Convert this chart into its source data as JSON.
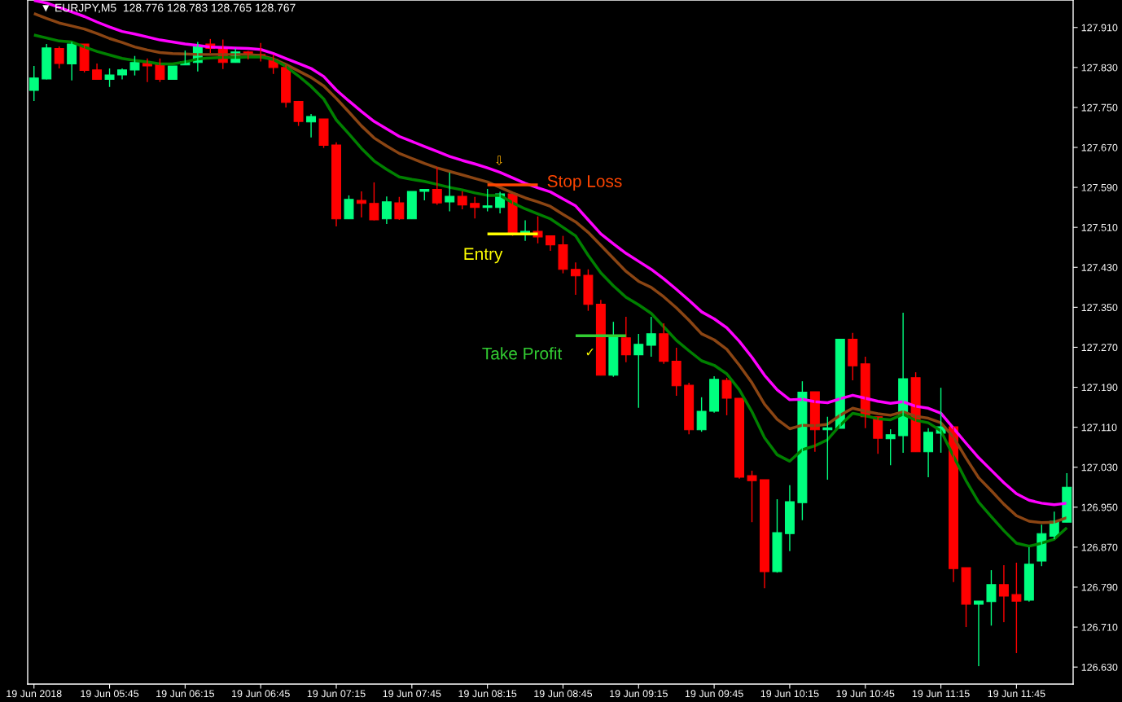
{
  "chart_data": {
    "type": "candlestick",
    "annotations": [
      "▼ EURJPY,M5  128.776 128.783 128.765 128.767",
      "⇩",
      "✓"
    ],
    "categories": [
      "19 Jun 2018",
      null,
      null,
      null,
      null,
      null,
      "19 Jun 05:45",
      null,
      null,
      null,
      null,
      null,
      "19 Jun 06:15",
      null,
      null,
      null,
      null,
      null,
      "19 Jun 06:45",
      null,
      null,
      null,
      null,
      null,
      "19 Jun 07:15",
      null,
      null,
      null,
      null,
      null,
      "19 Jun 07:45",
      null,
      null,
      null,
      null,
      null,
      "19 Jun 08:15",
      null,
      null,
      null,
      null,
      null,
      "19 Jun 08:45",
      null,
      null,
      null,
      null,
      null,
      "19 Jun 09:15",
      null,
      null,
      null,
      null,
      null,
      "19 Jun 09:45",
      null,
      null,
      null,
      null,
      null,
      "19 Jun 10:15",
      null,
      null,
      null,
      null,
      null,
      "19 Jun 10:45",
      null,
      null,
      null,
      null,
      null,
      "19 Jun 11:15",
      null,
      null,
      null,
      null,
      null,
      "19 Jun 11:45",
      null,
      null,
      null,
      null
    ],
    "ohlc": [
      [
        127.784,
        127.833,
        127.763,
        127.809
      ],
      [
        127.807,
        127.877,
        127.806,
        127.869
      ],
      [
        127.868,
        127.872,
        127.828,
        127.838
      ],
      [
        127.837,
        127.881,
        127.804,
        127.877
      ],
      [
        127.877,
        127.877,
        127.82,
        127.824
      ],
      [
        127.825,
        127.838,
        127.806,
        127.806
      ],
      [
        127.806,
        127.828,
        127.791,
        127.815
      ],
      [
        127.815,
        127.828,
        127.806,
        127.825
      ],
      [
        127.825,
        127.853,
        127.814,
        127.84
      ],
      [
        127.838,
        127.848,
        127.801,
        127.833
      ],
      [
        127.837,
        127.848,
        127.801,
        127.806
      ],
      [
        127.806,
        127.833,
        127.806,
        127.833
      ],
      [
        127.835,
        127.864,
        127.835,
        127.842
      ],
      [
        127.84,
        127.881,
        127.822,
        127.872
      ],
      [
        127.877,
        127.887,
        127.859,
        127.868
      ],
      [
        127.869,
        127.886,
        127.827,
        127.84
      ],
      [
        127.84,
        127.868,
        127.84,
        127.861
      ],
      [
        127.861,
        127.863,
        127.846,
        127.855
      ],
      [
        127.856,
        127.879,
        127.842,
        127.855
      ],
      [
        127.846,
        127.856,
        127.817,
        127.83
      ],
      [
        127.83,
        127.835,
        127.75,
        127.76
      ],
      [
        127.762,
        127.763,
        127.713,
        127.722
      ],
      [
        127.721,
        127.737,
        127.69,
        127.732
      ],
      [
        127.727,
        127.727,
        127.669,
        127.674
      ],
      [
        127.675,
        127.68,
        127.512,
        127.527
      ],
      [
        127.527,
        127.574,
        127.527,
        127.566
      ],
      [
        127.564,
        127.582,
        127.53,
        127.558
      ],
      [
        127.558,
        127.6,
        127.524,
        127.525
      ],
      [
        127.527,
        127.572,
        127.517,
        127.561
      ],
      [
        127.559,
        127.571,
        127.525,
        127.527
      ],
      [
        127.527,
        127.582,
        127.527,
        127.582
      ],
      [
        127.582,
        127.587,
        127.564,
        127.586
      ],
      [
        127.586,
        127.63,
        127.555,
        127.559
      ],
      [
        127.561,
        127.62,
        127.542,
        127.572
      ],
      [
        127.572,
        127.582,
        127.546,
        127.555
      ],
      [
        127.558,
        127.571,
        127.528,
        127.55
      ],
      [
        127.55,
        127.587,
        127.542,
        127.553
      ],
      [
        127.55,
        127.581,
        127.538,
        127.577
      ],
      [
        127.577,
        127.577,
        127.493,
        127.499
      ],
      [
        127.496,
        127.524,
        127.483,
        127.502
      ],
      [
        127.502,
        127.532,
        127.478,
        127.491
      ],
      [
        127.493,
        127.494,
        127.463,
        127.475
      ],
      [
        127.475,
        127.493,
        127.418,
        127.426
      ],
      [
        127.426,
        127.44,
        127.375,
        127.413
      ],
      [
        127.414,
        127.426,
        127.343,
        127.356
      ],
      [
        127.356,
        127.365,
        127.214,
        127.214
      ],
      [
        127.214,
        127.321,
        127.211,
        127.292
      ],
      [
        127.289,
        127.331,
        127.24,
        127.255
      ],
      [
        127.255,
        127.297,
        127.149,
        127.276
      ],
      [
        127.274,
        127.331,
        127.251,
        127.297
      ],
      [
        127.297,
        127.318,
        127.237,
        127.242
      ],
      [
        127.242,
        127.269,
        127.173,
        127.193
      ],
      [
        127.194,
        127.199,
        127.096,
        127.105
      ],
      [
        127.105,
        127.17,
        127.101,
        127.142
      ],
      [
        127.142,
        127.212,
        127.139,
        127.206
      ],
      [
        127.204,
        127.209,
        127.134,
        127.168
      ],
      [
        127.168,
        127.168,
        127.007,
        127.01
      ],
      [
        127.013,
        127.023,
        126.92,
        127.003
      ],
      [
        127.005,
        127.005,
        126.788,
        126.821
      ],
      [
        126.821,
        126.966,
        126.819,
        126.899
      ],
      [
        126.897,
        126.994,
        126.862,
        126.961
      ],
      [
        126.959,
        127.202,
        126.924,
        127.18
      ],
      [
        127.181,
        127.181,
        127.061,
        127.105
      ],
      [
        127.105,
        127.131,
        127.005,
        127.109
      ],
      [
        127.108,
        127.287,
        127.108,
        127.286
      ],
      [
        127.286,
        127.299,
        127.204,
        127.233
      ],
      [
        127.237,
        127.251,
        127.108,
        127.131
      ],
      [
        127.131,
        127.131,
        127.057,
        127.088
      ],
      [
        127.087,
        127.106,
        127.034,
        127.095
      ],
      [
        127.093,
        127.339,
        127.059,
        127.207
      ],
      [
        127.209,
        127.22,
        127.061,
        127.061
      ],
      [
        127.061,
        127.108,
        127.01,
        127.1
      ],
      [
        127.098,
        127.189,
        127.059,
        127.111
      ],
      [
        127.111,
        127.111,
        126.8,
        126.827
      ],
      [
        126.829,
        126.829,
        126.71,
        126.756
      ],
      [
        126.756,
        126.762,
        126.632,
        126.762
      ],
      [
        126.761,
        126.824,
        126.713,
        126.795
      ],
      [
        126.795,
        126.834,
        126.72,
        126.772
      ],
      [
        126.775,
        126.839,
        126.658,
        126.762
      ],
      [
        126.764,
        126.87,
        126.761,
        126.836
      ],
      [
        126.842,
        126.915,
        126.832,
        126.897
      ],
      [
        126.892,
        126.941,
        126.886,
        126.922
      ],
      [
        126.92,
        127.018,
        126.92,
        126.99
      ]
    ],
    "colors": [
      "#00ff7f",
      "#00ff7f",
      "#ff0000",
      "#00ff7f",
      "#ff0000",
      "#ff0000",
      "#00ff7f",
      "#00ff7f",
      "#00ff7f",
      "#ff0000",
      "#ff0000",
      "#00ff7f",
      "#00ff7f",
      "#00ff7f",
      "#ff0000",
      "#ff0000",
      "#00ff7f",
      "#ff0000",
      "#ff0000",
      "#ff0000",
      "#ff0000",
      "#ff0000",
      "#00ff7f",
      "#ff0000",
      "#ff0000",
      "#00ff7f",
      "#ff0000",
      "#ff0000",
      "#00ff7f",
      "#ff0000",
      "#00ff7f",
      "#00ff7f",
      "#ff0000",
      "#00ff7f",
      "#ff0000",
      "#ff0000",
      "#00ff7f",
      "#00ff7f",
      "#ff0000",
      "#00ff7f",
      "#ff0000",
      "#ff0000",
      "#ff0000",
      "#ff0000",
      "#ff0000",
      "#ff0000",
      "#00ff7f",
      "#ff0000",
      "#00ff7f",
      "#00ff7f",
      "#ff0000",
      "#ff0000",
      "#ff0000",
      "#00ff7f",
      "#00ff7f",
      "#ff0000",
      "#ff0000",
      "#ff0000",
      "#ff0000",
      "#00ff7f",
      "#00ff7f",
      "#00ff7f",
      "#ff0000",
      "#00ff7f",
      "#00ff7f",
      "#ff0000",
      "#ff0000",
      "#ff0000",
      "#00ff7f",
      "#00ff7f",
      "#ff0000",
      "#00ff7f",
      "#00ff7f",
      "#ff0000",
      "#ff0000",
      "#00ff7f",
      "#00ff7f",
      "#ff0000",
      "#ff0000",
      "#00ff7f",
      "#00ff7f",
      "#00ff7f",
      "#00ff7f"
    ],
    "series": [
      {
        "type": "line",
        "color": "#ff00ff",
        "values": [
          127.964,
          127.959,
          127.95,
          127.941,
          127.932,
          127.921,
          127.911,
          127.902,
          127.897,
          127.891,
          127.885,
          127.881,
          127.877,
          127.874,
          127.871,
          127.87,
          127.869,
          127.868,
          127.866,
          127.858,
          127.848,
          127.838,
          127.828,
          127.812,
          127.785,
          127.763,
          127.742,
          127.722,
          127.707,
          127.692,
          127.682,
          127.672,
          127.662,
          127.652,
          127.644,
          127.637,
          127.629,
          127.62,
          127.609,
          127.598,
          127.589,
          127.581,
          127.567,
          127.553,
          127.525,
          127.497,
          127.477,
          127.458,
          127.442,
          127.426,
          127.407,
          127.386,
          127.364,
          127.341,
          127.327,
          127.309,
          127.282,
          127.25,
          127.214,
          127.185,
          127.165,
          127.166,
          127.161,
          127.159,
          127.167,
          127.174,
          127.168,
          127.162,
          127.158,
          127.161,
          127.152,
          127.148,
          127.138,
          127.108,
          127.078,
          127.049,
          127.024,
          126.999,
          126.977,
          126.964,
          126.958,
          126.955,
          126.958
        ]
      },
      {
        "type": "line",
        "color": "#8b4513",
        "values": [
          127.938,
          127.928,
          127.919,
          127.913,
          127.907,
          127.898,
          127.888,
          127.88,
          127.871,
          127.865,
          127.86,
          127.858,
          127.857,
          127.856,
          127.856,
          127.856,
          127.856,
          127.856,
          127.854,
          127.847,
          127.836,
          127.823,
          127.81,
          127.793,
          127.768,
          127.741,
          127.713,
          127.689,
          127.673,
          127.658,
          127.648,
          127.638,
          127.629,
          127.622,
          127.615,
          127.608,
          127.601,
          127.59,
          127.579,
          127.569,
          127.561,
          127.552,
          127.536,
          127.521,
          127.5,
          127.474,
          127.448,
          127.422,
          127.402,
          127.39,
          127.371,
          127.349,
          127.324,
          127.297,
          127.285,
          127.266,
          127.234,
          127.199,
          127.156,
          127.126,
          127.107,
          127.114,
          127.113,
          127.116,
          127.134,
          127.148,
          127.142,
          127.137,
          127.134,
          127.141,
          127.132,
          127.128,
          127.119,
          127.09,
          127.048,
          127.009,
          126.983,
          126.956,
          126.933,
          126.922,
          126.919,
          126.92,
          126.929
        ]
      },
      {
        "type": "line",
        "color": "#008000",
        "values": [
          127.895,
          127.889,
          127.883,
          127.881,
          127.871,
          127.862,
          127.855,
          127.848,
          127.844,
          127.841,
          127.837,
          127.837,
          127.841,
          127.847,
          127.849,
          127.85,
          127.85,
          127.851,
          127.851,
          127.846,
          127.832,
          127.813,
          127.792,
          127.767,
          127.725,
          127.697,
          127.668,
          127.643,
          127.626,
          127.611,
          127.606,
          127.602,
          127.596,
          127.59,
          127.585,
          127.579,
          127.574,
          127.574,
          127.559,
          127.547,
          127.537,
          127.527,
          127.51,
          127.493,
          127.454,
          127.419,
          127.393,
          127.37,
          127.355,
          127.338,
          127.311,
          127.284,
          127.263,
          127.243,
          127.234,
          127.217,
          127.185,
          127.141,
          127.089,
          127.055,
          127.042,
          127.065,
          127.073,
          127.085,
          127.114,
          127.138,
          127.133,
          127.127,
          127.125,
          127.136,
          127.124,
          127.119,
          127.103,
          127.052,
          127.003,
          126.96,
          126.931,
          126.903,
          126.878,
          126.872,
          126.878,
          126.886,
          126.909
        ]
      },
      {
        "type": "line",
        "name": "Stop Loss",
        "color": "#ff4500",
        "values": [
          null,
          null,
          null,
          null,
          null,
          null,
          null,
          null,
          null,
          null,
          null,
          null,
          null,
          null,
          null,
          null,
          null,
          null,
          null,
          null,
          null,
          null,
          null,
          null,
          null,
          null,
          null,
          null,
          null,
          null,
          null,
          null,
          null,
          null,
          null,
          null,
          127.595,
          127.595,
          127.595,
          127.595,
          127.595,
          null,
          null,
          null,
          null,
          null,
          null,
          null,
          null,
          null,
          null,
          null,
          null,
          null,
          null,
          null,
          null,
          null,
          null,
          null,
          null,
          null,
          null,
          null,
          null,
          null,
          null,
          null,
          null,
          null,
          null,
          null,
          null,
          null,
          null,
          null,
          null,
          null,
          null,
          null,
          null,
          null,
          null
        ]
      },
      {
        "type": "line",
        "name": "Entry",
        "color": "#ffff00",
        "values": [
          null,
          null,
          null,
          null,
          null,
          null,
          null,
          null,
          null,
          null,
          null,
          null,
          null,
          null,
          null,
          null,
          null,
          null,
          null,
          null,
          null,
          null,
          null,
          null,
          null,
          null,
          null,
          null,
          null,
          null,
          null,
          null,
          null,
          null,
          null,
          null,
          127.497,
          127.497,
          127.497,
          127.497,
          127.497,
          null,
          null,
          null,
          null,
          null,
          null,
          null,
          null,
          null,
          null,
          null,
          null,
          null,
          null,
          null,
          null,
          null,
          null,
          null,
          null,
          null,
          null,
          null,
          null,
          null,
          null,
          null,
          null,
          null,
          null,
          null,
          null,
          null,
          null,
          null,
          null,
          null,
          null,
          null,
          null,
          null,
          null
        ]
      },
      {
        "type": "line",
        "name": "Take Profit",
        "color": "#32cd32",
        "values": [
          null,
          null,
          null,
          null,
          null,
          null,
          null,
          null,
          null,
          null,
          null,
          null,
          null,
          null,
          null,
          null,
          null,
          null,
          null,
          null,
          null,
          null,
          null,
          null,
          null,
          null,
          null,
          null,
          null,
          null,
          null,
          null,
          null,
          null,
          null,
          null,
          null,
          null,
          null,
          null,
          null,
          null,
          null,
          127.293,
          127.293,
          127.293,
          127.293,
          127.293,
          null,
          null,
          null,
          null,
          null,
          null,
          null,
          null,
          null,
          null,
          null,
          null,
          null,
          null,
          null,
          null,
          null,
          null,
          null,
          null,
          null,
          null,
          null,
          null,
          null,
          null,
          null,
          null,
          null,
          null,
          null,
          null,
          null,
          null,
          null
        ]
      }
    ],
    "ylim": [
      126.596,
      127.965
    ],
    "yticks": [
      {
        "value": 127.91,
        "label": "127.910"
      },
      {
        "value": 127.83,
        "label": "127.830"
      },
      {
        "value": 127.75,
        "label": "127.750"
      },
      {
        "value": 127.67,
        "label": "127.670"
      },
      {
        "value": 127.59,
        "label": "127.590"
      },
      {
        "value": 127.51,
        "label": "127.510"
      },
      {
        "value": 127.43,
        "label": "127.430"
      },
      {
        "value": 127.35,
        "label": "127.350"
      },
      {
        "value": 127.27,
        "label": "127.270"
      },
      {
        "value": 127.19,
        "label": "127.190"
      },
      {
        "value": 127.11,
        "label": "127.110"
      },
      {
        "value": 127.03,
        "label": "127.030"
      },
      {
        "value": 126.95,
        "label": "126.950"
      },
      {
        "value": 126.87,
        "label": "126.870"
      },
      {
        "value": 126.79,
        "label": "126.790"
      },
      {
        "value": 126.71,
        "label": "126.710"
      },
      {
        "value": 126.63,
        "label": "126.630"
      }
    ],
    "grid": false,
    "legend": false
  }
}
